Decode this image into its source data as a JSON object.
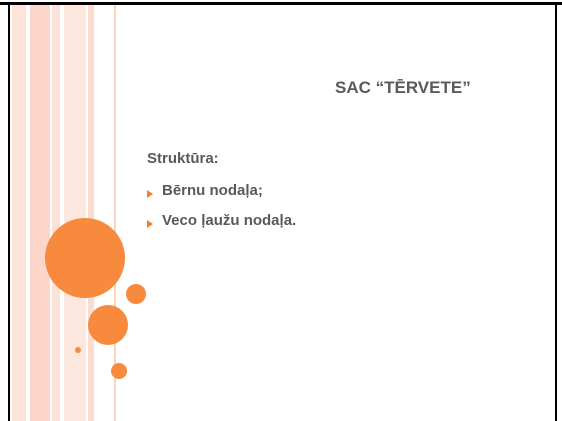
{
  "slide": {
    "title": "SAC “TĒRVETE”",
    "heading": "Struktūra:",
    "items": [
      "Bērnu nodaļa;",
      "Veco ļaužu nodaļa."
    ]
  }
}
